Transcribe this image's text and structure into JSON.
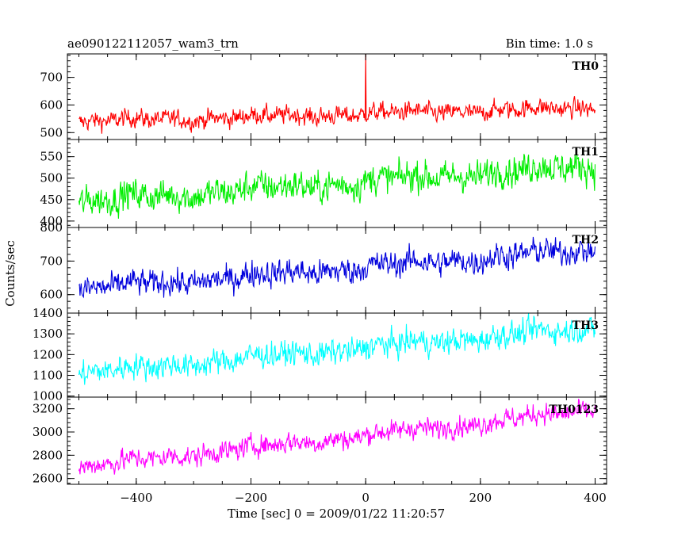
{
  "header": {
    "title": "ae090122112057_wam3_trn",
    "bin_time": "Bin time: 1.0 s"
  },
  "chart_data": {
    "type": "line",
    "title": "ae090122112057_wam3_trn",
    "subtitle": "Bin time: 1.0 s",
    "xlabel": "Time [sec] 0 = 2009/01/22 11:20:57",
    "ylabel": "Counts/sec",
    "xlim": [
      -520,
      420
    ],
    "x_ticks": [
      -400,
      -200,
      0,
      200,
      400
    ],
    "x_tick_labels": [
      "−400",
      "−200",
      "0",
      "200",
      "400"
    ],
    "grid": false,
    "series": [
      {
        "name": "TH0",
        "color": "#ff0000",
        "ylim": [
          475,
          785
        ],
        "y_ticks": [
          500,
          600,
          700
        ],
        "x_range": [
          -500,
          400
        ],
        "trend": [
          540,
          590
        ],
        "noise": 22,
        "spike": {
          "x": 0,
          "y": 785
        }
      },
      {
        "name": "TH1",
        "color": "#00ee00",
        "ylim": [
          385,
          590
        ],
        "y_ticks": [
          400,
          450,
          500,
          550
        ],
        "x_range": [
          -500,
          400
        ],
        "trend": [
          445,
          530
        ],
        "noise": 24
      },
      {
        "name": "TH2",
        "color": "#0000dd",
        "ylim": [
          545,
          800
        ],
        "y_ticks": [
          600,
          700,
          800
        ],
        "x_range": [
          -500,
          400
        ],
        "trend": [
          615,
          735
        ],
        "noise": 26
      },
      {
        "name": "TH3",
        "color": "#00ffff",
        "ylim": [
          995,
          1400
        ],
        "y_ticks": [
          1000,
          1100,
          1200,
          1300,
          1400
        ],
        "x_range": [
          -500,
          400
        ],
        "trend": [
          1110,
          1330
        ],
        "noise": 40
      },
      {
        "name": "TH0123",
        "color": "#ff00ff",
        "ylim": [
          2550,
          3300
        ],
        "y_ticks": [
          2600,
          2800,
          3000,
          3200
        ],
        "x_range": [
          -500,
          400
        ],
        "trend": [
          2700,
          3190
        ],
        "noise": 60
      }
    ]
  }
}
